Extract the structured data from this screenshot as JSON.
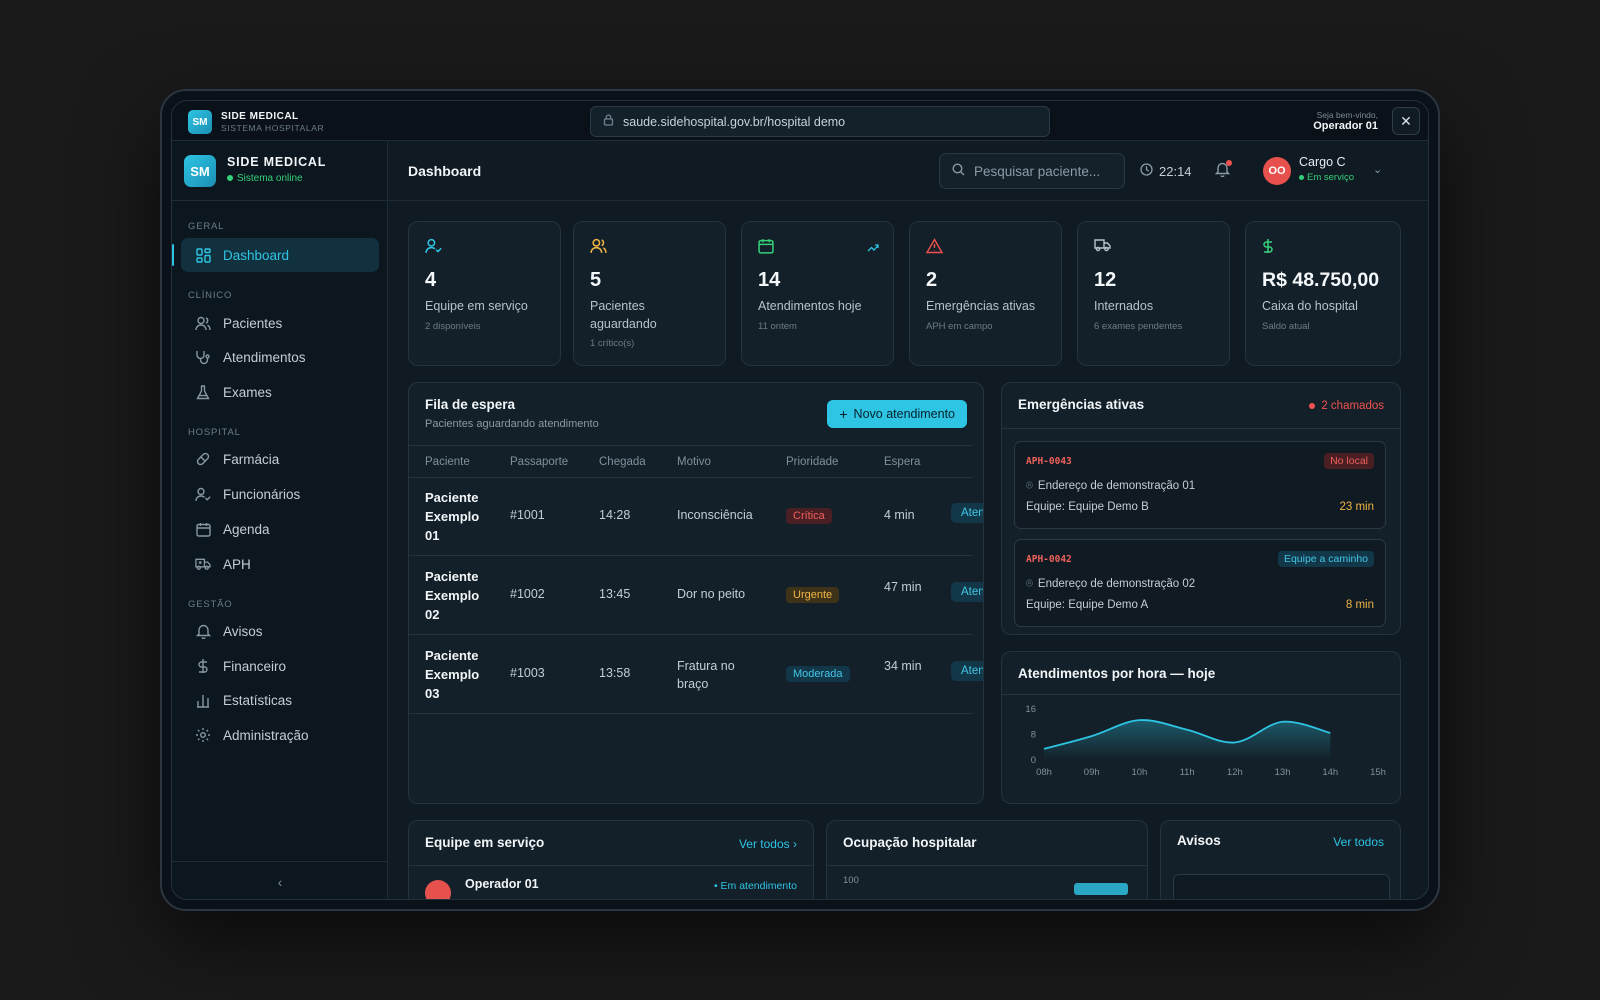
{
  "browser": {
    "brand": "SIDE MEDICAL",
    "brand_sub": "SISTEMA HOSPITALAR",
    "logo": "SM",
    "url": "saude.sidehospital.gov.br/hospital demo",
    "welcome": "Seja bem-vindo,",
    "operator": "Operador 01"
  },
  "sidebar": {
    "logo": "SM",
    "title": "SIDE MEDICAL",
    "status": "Sistema online",
    "sections": [
      "GERAL",
      "CLÍNICO",
      "HOSPITAL",
      "GESTÃO"
    ],
    "items": [
      {
        "label": "Dashboard",
        "icon": "dashboard-icon"
      },
      {
        "label": "Pacientes",
        "icon": "users-icon"
      },
      {
        "label": "Atendimentos",
        "icon": "stethoscope-icon"
      },
      {
        "label": "Exames",
        "icon": "flask-icon"
      },
      {
        "label": "Farmácia",
        "icon": "pill-icon"
      },
      {
        "label": "Funcionários",
        "icon": "user-check-icon"
      },
      {
        "label": "Agenda",
        "icon": "calendar-icon"
      },
      {
        "label": "APH",
        "icon": "ambulance-icon"
      },
      {
        "label": "Avisos",
        "icon": "bell-icon"
      },
      {
        "label": "Financeiro",
        "icon": "dollar-icon"
      },
      {
        "label": "Estatísticas",
        "icon": "bar-chart-icon"
      },
      {
        "label": "Administração",
        "icon": "gear-icon"
      }
    ],
    "collapse": "‹"
  },
  "header": {
    "title": "Dashboard",
    "search_placeholder": "Pesquisar paciente...",
    "time": "22:14",
    "avatar": "OO",
    "user": "Cargo C",
    "user_status": "Em serviço"
  },
  "stats": [
    {
      "value": "4",
      "label": "Equipe em serviço",
      "sub": "2 disponíveis",
      "color": "#2ec4e3"
    },
    {
      "value": "5",
      "label": "Pacientes aguardando",
      "sub": "1 crítico(s)",
      "color": "#f1b544"
    },
    {
      "value": "14",
      "label": "Atendimentos hoje",
      "sub": "11 ontem",
      "color": "#34d17a"
    },
    {
      "value": "2",
      "label": "Emergências ativas",
      "sub": "APH em campo",
      "color": "#f0524f"
    },
    {
      "value": "12",
      "label": "Internados",
      "sub": "6 exames pendentes",
      "color": "#b7c3cb"
    },
    {
      "value": "R$ 48.750,00",
      "label": "Caixa do hospital",
      "sub": "Saldo atual",
      "color": "#34d17a"
    }
  ],
  "queue": {
    "title": "Fila de espera",
    "subtitle": "Pacientes aguardando atendimento",
    "new_button": "Novo atendimento",
    "columns": [
      "Paciente",
      "Passaporte",
      "Chegada",
      "Motivo",
      "Prioridade",
      "Espera"
    ],
    "rows": [
      {
        "patient": "Paciente Exemplo 01",
        "passport": "#1001",
        "arrival": "14:28",
        "reason": "Inconsciência",
        "priority": "Crítica",
        "wait": "4 min",
        "action": "Atender"
      },
      {
        "patient": "Paciente Exemplo 02",
        "passport": "#1002",
        "arrival": "13:45",
        "reason": "Dor no peito",
        "priority": "Urgente",
        "wait": "47 min",
        "action": "Atender"
      },
      {
        "patient": "Paciente Exemplo 03",
        "passport": "#1003",
        "arrival": "13:58",
        "reason": "Fratura no braço",
        "priority": "Moderada",
        "wait": "34 min",
        "action": "Atender"
      }
    ]
  },
  "emergencies": {
    "title": "Emergências ativas",
    "count": "2 chamados",
    "items": [
      {
        "code": "APH-0043",
        "status": "No local",
        "address": "Endereço de demonstração 01",
        "team": "Equipe: Equipe Demo B",
        "time": "23 min"
      },
      {
        "code": "APH-0042",
        "status": "Equipe a caminho",
        "address": "Endereço de demonstração 02",
        "team": "Equipe: Equipe Demo A",
        "time": "8 min"
      }
    ]
  },
  "chart_data": {
    "type": "area",
    "title": "Atendimentos por hora — hoje",
    "x": [
      "08h",
      "09h",
      "10h",
      "11h",
      "12h",
      "13h",
      "14h",
      "15h"
    ],
    "y_ticks": [
      "0",
      "8",
      "16"
    ],
    "ylim": [
      0,
      16
    ],
    "values": [
      3.5,
      7.5,
      12.5,
      9.5,
      5.5,
      12,
      8.5,
      null
    ],
    "color": "#2ec4e3"
  },
  "team": {
    "title": "Equipe em serviço",
    "see_all": "Ver todos",
    "first_member": "Operador 01",
    "first_status": "Em atendimento"
  },
  "occupancy": {
    "title": "Ocupação hospitalar",
    "axis_top": "100"
  },
  "notices": {
    "title": "Avisos",
    "see_all": "Ver todos"
  }
}
